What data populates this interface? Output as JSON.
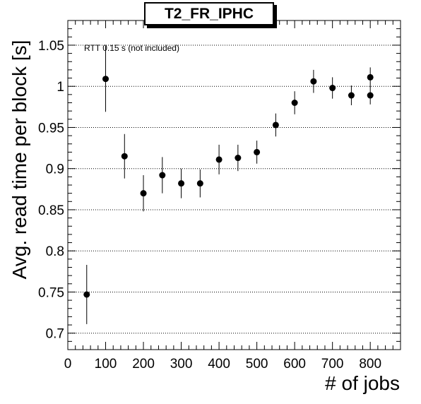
{
  "chart_data": {
    "type": "scatter",
    "title": "T2_FR_IPHC",
    "xlabel": "# of jobs",
    "ylabel": "Avg. read time per block [s]",
    "annotation": "RTT 0.15 s (not included)",
    "xlim": [
      0,
      880
    ],
    "ylim": [
      0.68,
      1.08
    ],
    "xticks": [
      0,
      100,
      200,
      300,
      400,
      500,
      600,
      700,
      800
    ],
    "xtick_labels": [
      "0",
      "100",
      "200",
      "300",
      "400",
      "500",
      "600",
      "700",
      "800"
    ],
    "yticks": [
      0.7,
      0.75,
      0.8,
      0.85,
      0.9,
      0.95,
      1.0,
      1.05
    ],
    "ytick_labels": [
      "0.7",
      "0.75",
      "0.8",
      "0.85",
      "0.9",
      "0.95",
      "1",
      "1.05"
    ],
    "grid": "horizontal dotted",
    "points": [
      {
        "x": 50,
        "y": 0.747,
        "err": 0.036
      },
      {
        "x": 100,
        "y": 1.009,
        "err": 0.04
      },
      {
        "x": 150,
        "y": 0.915,
        "err": 0.027
      },
      {
        "x": 200,
        "y": 0.87,
        "err": 0.022
      },
      {
        "x": 250,
        "y": 0.892,
        "err": 0.022
      },
      {
        "x": 300,
        "y": 0.882,
        "err": 0.018
      },
      {
        "x": 350,
        "y": 0.882,
        "err": 0.017
      },
      {
        "x": 400,
        "y": 0.911,
        "err": 0.018
      },
      {
        "x": 450,
        "y": 0.913,
        "err": 0.016
      },
      {
        "x": 500,
        "y": 0.92,
        "err": 0.014
      },
      {
        "x": 550,
        "y": 0.953,
        "err": 0.014
      },
      {
        "x": 600,
        "y": 0.98,
        "err": 0.014
      },
      {
        "x": 650,
        "y": 1.006,
        "err": 0.014
      },
      {
        "x": 700,
        "y": 0.998,
        "err": 0.013
      },
      {
        "x": 750,
        "y": 0.989,
        "err": 0.012
      },
      {
        "x": 800,
        "y": 1.011,
        "err": 0.012
      },
      {
        "x": 800,
        "y": 0.989,
        "err": 0.011
      }
    ],
    "color": "#000000"
  }
}
